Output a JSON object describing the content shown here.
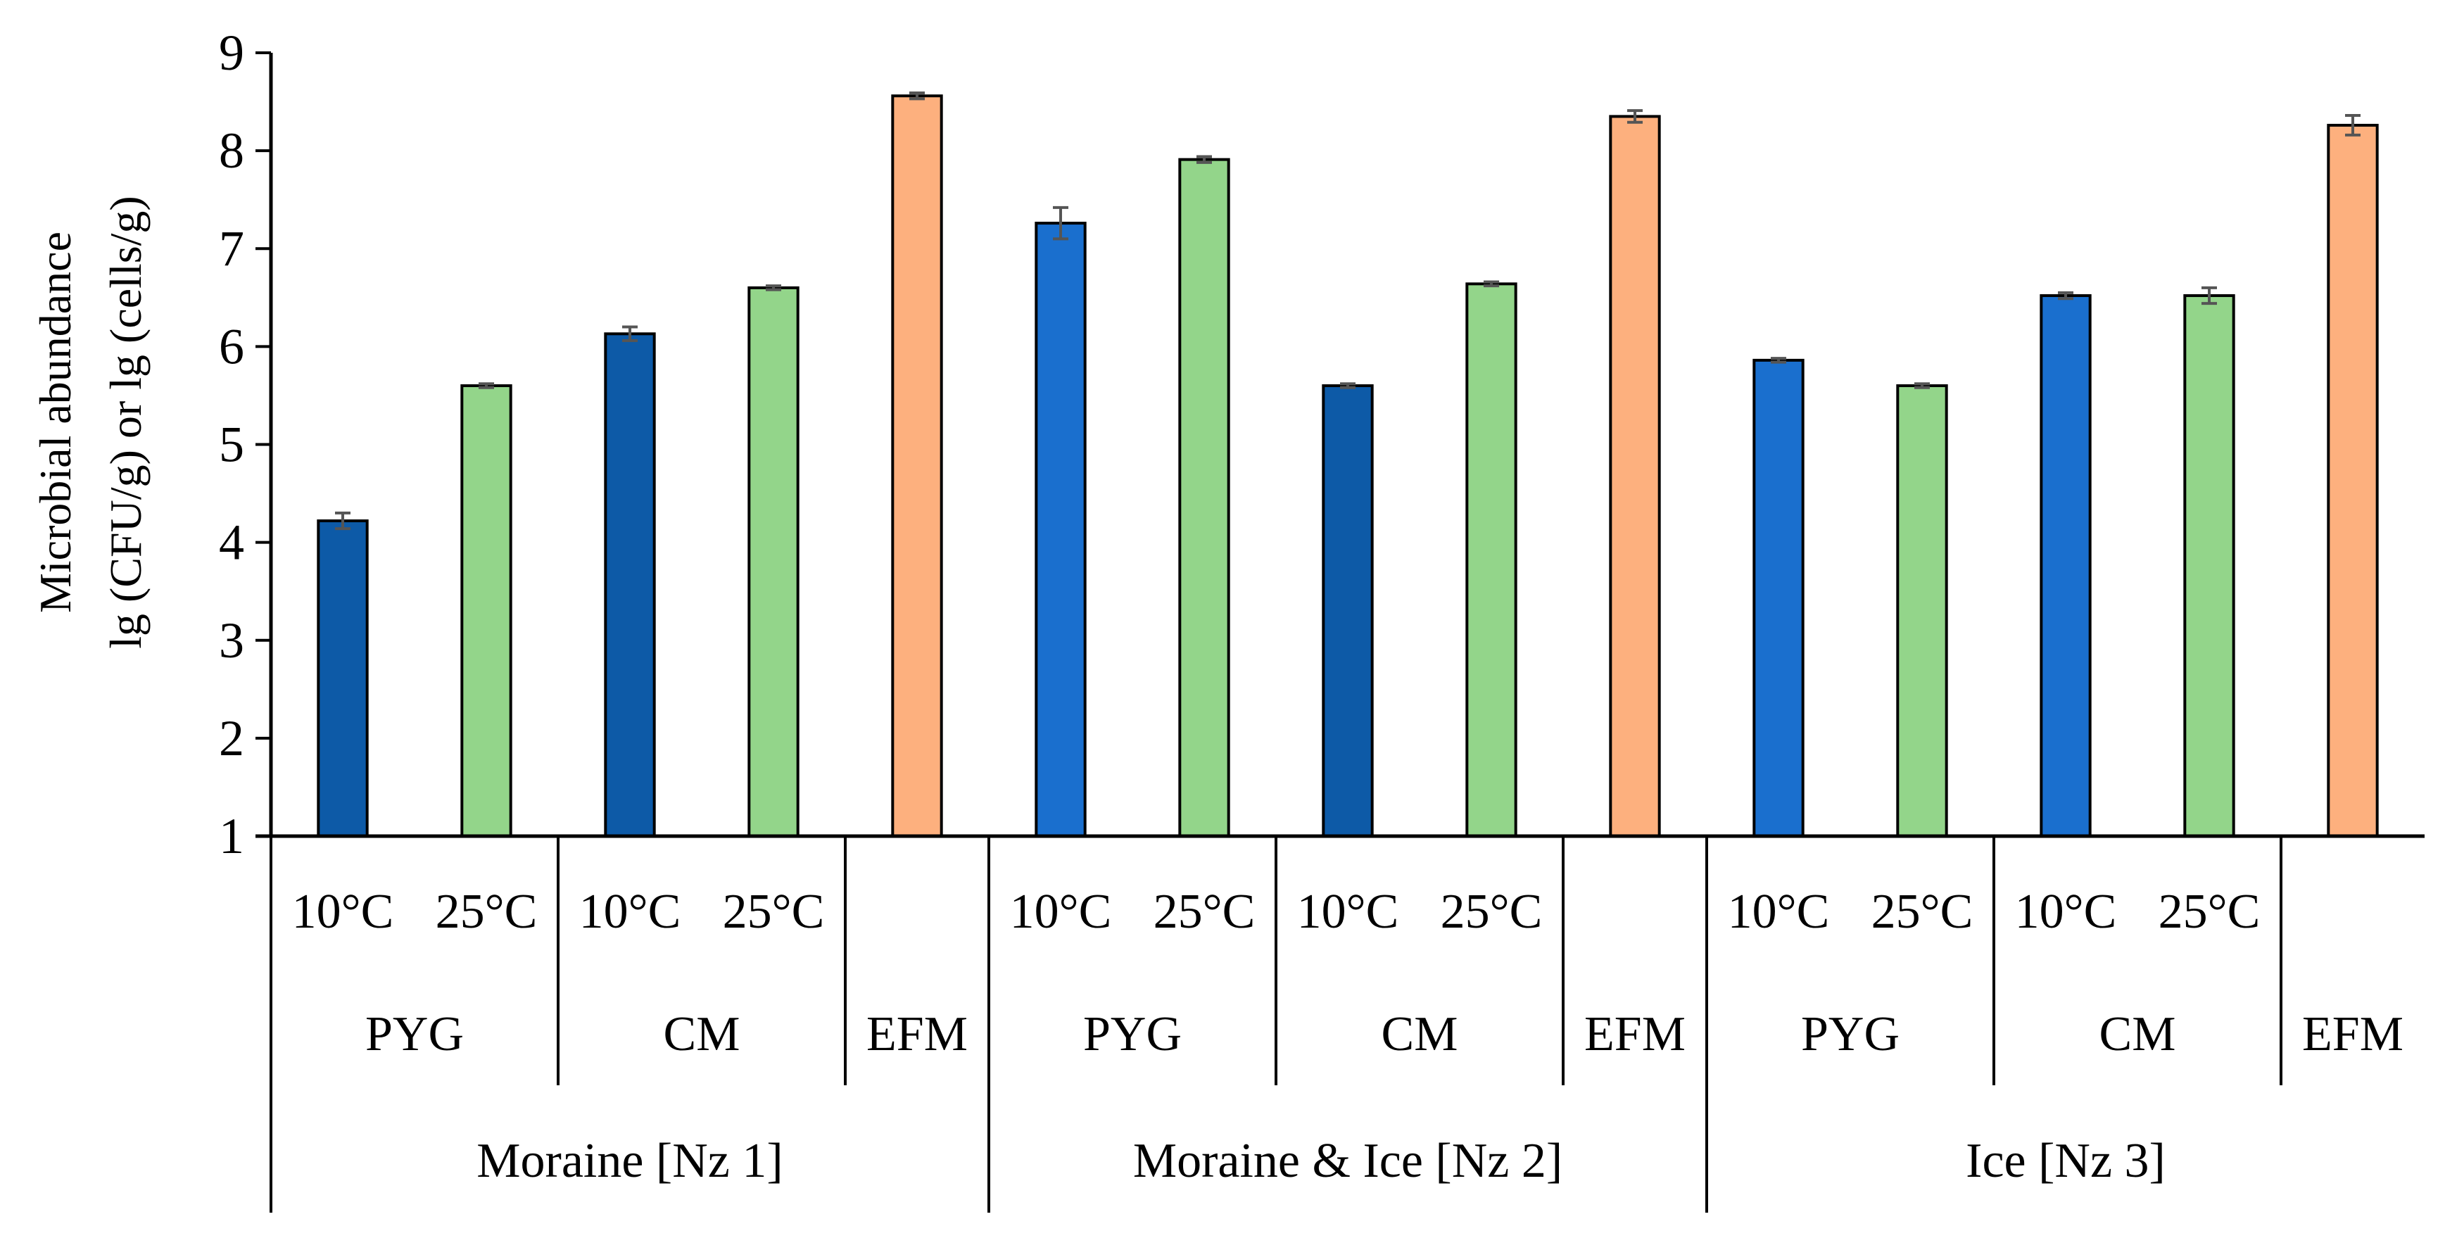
{
  "chart_data": {
    "type": "bar",
    "title": "",
    "xlabel": "",
    "ylabel_line1": "Microbial abundance",
    "ylabel_line2": "lg (CFU/g) or lg (cells/g)",
    "ylim": [
      1,
      9
    ],
    "yticks": [
      "1",
      "2",
      "3",
      "4",
      "5",
      "6",
      "7",
      "8",
      "9"
    ],
    "grid": false,
    "legend": "none",
    "colors": {
      "pyg_10": "#0d5aa7",
      "pyg_10_alt": "#1a6fce",
      "c25": "#93d58a",
      "efm": "#fdb07e",
      "outline": "#000000",
      "errorbar": "#555555"
    },
    "groups": [
      {
        "label": "Moraine [Nz 1]",
        "media": [
          {
            "label": "PYG",
            "bars": [
              {
                "label": "10°C",
                "value": 4.22,
                "error": 0.08,
                "color": "#0d5aa7"
              },
              {
                "label": "25°C",
                "value": 5.6,
                "error": 0.02,
                "color": "#93d58a"
              }
            ]
          },
          {
            "label": "CM",
            "bars": [
              {
                "label": "10°C",
                "value": 6.13,
                "error": 0.07,
                "color": "#0d5aa7"
              },
              {
                "label": "25°C",
                "value": 6.6,
                "error": 0.02,
                "color": "#93d58a"
              }
            ]
          },
          {
            "label": "EFM",
            "bars": [
              {
                "label": "",
                "value": 8.56,
                "error": 0.03,
                "color": "#fdb07e"
              }
            ]
          }
        ]
      },
      {
        "label": "Moraine & Ice [Nz 2]",
        "media": [
          {
            "label": "PYG",
            "bars": [
              {
                "label": "10°C",
                "value": 7.26,
                "error": 0.16,
                "color": "#1a6fce"
              },
              {
                "label": "25°C",
                "value": 7.91,
                "error": 0.03,
                "color": "#93d58a"
              }
            ]
          },
          {
            "label": "CM",
            "bars": [
              {
                "label": "10°C",
                "value": 5.6,
                "error": 0.02,
                "color": "#0d5aa7"
              },
              {
                "label": "25°C",
                "value": 6.64,
                "error": 0.02,
                "color": "#93d58a"
              }
            ]
          },
          {
            "label": "EFM",
            "bars": [
              {
                "label": "",
                "value": 8.35,
                "error": 0.06,
                "color": "#fdb07e"
              }
            ]
          }
        ]
      },
      {
        "label": "Ice [Nz 3]",
        "media": [
          {
            "label": "PYG",
            "bars": [
              {
                "label": "10°C",
                "value": 5.86,
                "error": 0.02,
                "color": "#1a6fce"
              },
              {
                "label": "25°C",
                "value": 5.6,
                "error": 0.02,
                "color": "#93d58a"
              }
            ]
          },
          {
            "label": "CM",
            "bars": [
              {
                "label": "10°C",
                "value": 6.52,
                "error": 0.03,
                "color": "#1a6fce"
              },
              {
                "label": "25°C",
                "value": 6.52,
                "error": 0.08,
                "color": "#93d58a"
              }
            ]
          },
          {
            "label": "EFM",
            "bars": [
              {
                "label": "",
                "value": 8.26,
                "error": 0.1,
                "color": "#fdb07e"
              }
            ]
          }
        ]
      }
    ]
  }
}
